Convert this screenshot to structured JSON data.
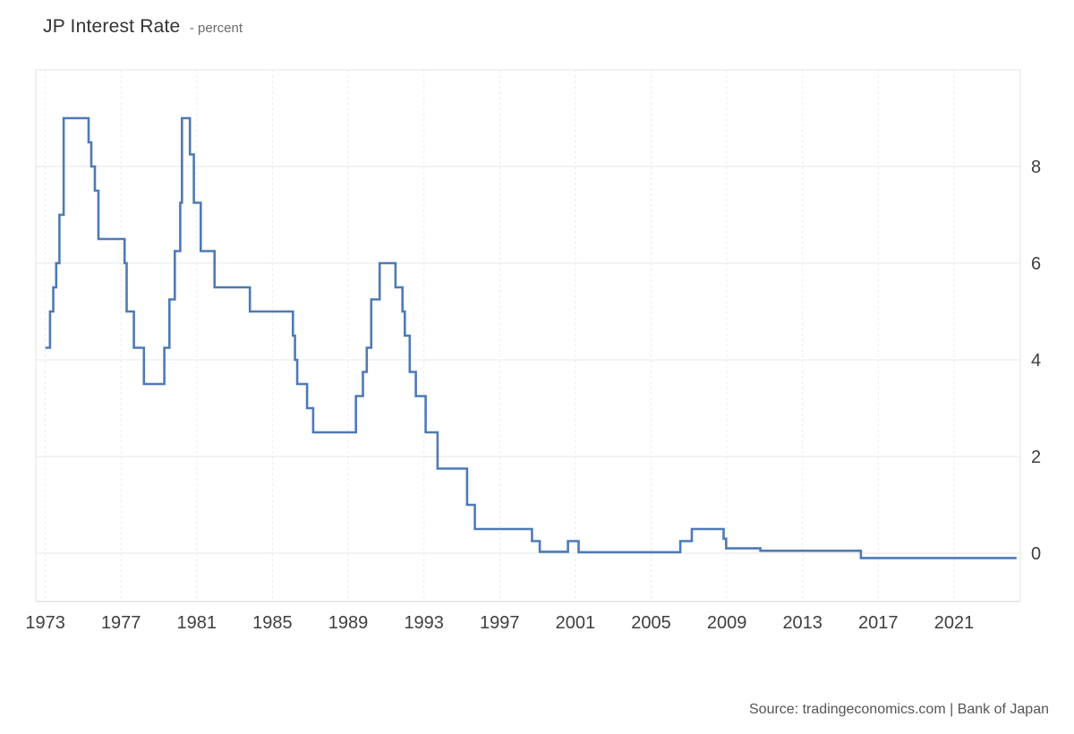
{
  "header": {
    "title": "JP Interest Rate",
    "unit": "- percent"
  },
  "footer": {
    "source": "Source: tradingeconomics.com | Bank of Japan"
  },
  "colors": {
    "line": "#4e7ab5",
    "grid_horizontal": "#e7e7e7",
    "grid_vertical": "#ececec",
    "border": "#e3e3e3",
    "axis": "#d6d6d6",
    "x_tick_label": "#3f3f3f",
    "y_tick_label": "#3f3f3f"
  },
  "chart_data": {
    "type": "line",
    "step": "after",
    "title": "JP Interest Rate",
    "xlabel": "",
    "ylabel": "percent",
    "xlim": [
      1972.5,
      2024.5
    ],
    "ylim": [
      -1,
      10
    ],
    "x_ticks": [
      1973,
      1977,
      1981,
      1985,
      1989,
      1993,
      1997,
      2001,
      2005,
      2009,
      2013,
      2017,
      2021
    ],
    "y_ticks": [
      0,
      2,
      4,
      6,
      8
    ],
    "grid": true,
    "legend": false,
    "series": [
      {
        "name": "JP Interest Rate (percent)",
        "points": [
          [
            1973.0,
            4.25
          ],
          [
            1973.25,
            5.0
          ],
          [
            1973.42,
            5.5
          ],
          [
            1973.58,
            6.0
          ],
          [
            1973.75,
            7.0
          ],
          [
            1973.97,
            9.0
          ],
          [
            1975.29,
            8.5
          ],
          [
            1975.43,
            8.0
          ],
          [
            1975.62,
            7.5
          ],
          [
            1975.81,
            6.5
          ],
          [
            1977.19,
            6.0
          ],
          [
            1977.3,
            5.0
          ],
          [
            1977.68,
            4.25
          ],
          [
            1978.21,
            3.5
          ],
          [
            1979.29,
            4.25
          ],
          [
            1979.56,
            5.25
          ],
          [
            1979.84,
            6.25
          ],
          [
            1980.13,
            7.25
          ],
          [
            1980.22,
            9.0
          ],
          [
            1980.64,
            8.25
          ],
          [
            1980.85,
            7.25
          ],
          [
            1981.21,
            6.25
          ],
          [
            1981.94,
            5.5
          ],
          [
            1983.81,
            5.0
          ],
          [
            1986.08,
            4.5
          ],
          [
            1986.19,
            4.0
          ],
          [
            1986.31,
            3.5
          ],
          [
            1986.83,
            3.0
          ],
          [
            1987.15,
            2.5
          ],
          [
            1989.41,
            3.25
          ],
          [
            1989.78,
            3.75
          ],
          [
            1989.98,
            4.25
          ],
          [
            1990.22,
            5.25
          ],
          [
            1990.66,
            6.0
          ],
          [
            1991.5,
            5.5
          ],
          [
            1991.87,
            5.0
          ],
          [
            1991.99,
            4.5
          ],
          [
            1992.25,
            3.75
          ],
          [
            1992.57,
            3.25
          ],
          [
            1993.09,
            2.5
          ],
          [
            1993.72,
            1.75
          ],
          [
            1995.28,
            1.0
          ],
          [
            1995.69,
            0.5
          ],
          [
            1998.71,
            0.25
          ],
          [
            1999.12,
            0.03
          ],
          [
            2000.61,
            0.25
          ],
          [
            2001.17,
            0.02
          ],
          [
            2006.54,
            0.25
          ],
          [
            2007.15,
            0.5
          ],
          [
            2008.83,
            0.3
          ],
          [
            2008.96,
            0.1
          ],
          [
            2010.77,
            0.05
          ],
          [
            2016.08,
            -0.1
          ],
          [
            2024.3,
            -0.1
          ]
        ]
      }
    ]
  }
}
